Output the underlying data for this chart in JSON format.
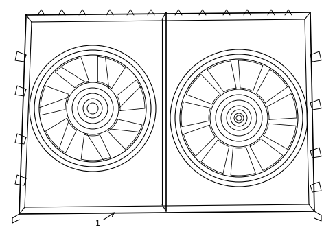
{
  "background_color": "#ffffff",
  "line_color": "#000000",
  "line_width": 1.0,
  "label": "1",
  "title": "",
  "fig_width": 4.89,
  "fig_height": 3.6,
  "dpi": 100
}
